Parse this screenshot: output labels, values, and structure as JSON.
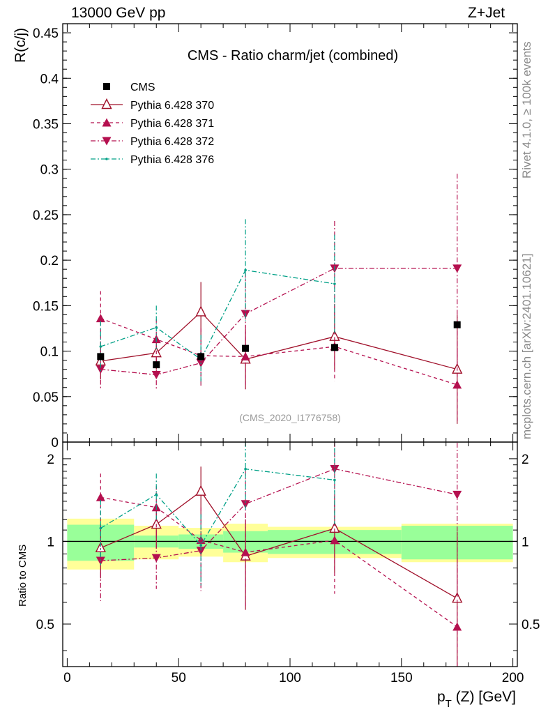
{
  "header": {
    "left": "13000 GeV pp",
    "right": "Z+Jet"
  },
  "side": {
    "rivet": "Rivet 4.1.0, ≥ 100k events",
    "mcplots": "mcplots.cern.ch [arXiv:2401.10621]"
  },
  "chart_data": {
    "type": "scatter",
    "title": "CMS - Ratio charm/jet (combined)",
    "analysis_label": "(CMS_2020_I1776758)",
    "xlabel": "p_T (Z) [GeV]",
    "xlabel_main": "p",
    "xlabel_sub": "T",
    "xlabel_rest": " (Z) [GeV]",
    "ylabel": "R(c/j)",
    "ratio_ylabel": "Ratio to CMS",
    "xlim": [
      -2,
      202
    ],
    "ylim": [
      0,
      0.46
    ],
    "ratio_ylim": [
      0.35,
      2.3
    ],
    "xticks": [
      0,
      50,
      100,
      150,
      200
    ],
    "yticks": [
      0,
      0.05,
      0.1,
      0.15,
      0.2,
      0.25,
      0.3,
      0.35,
      0.4,
      0.45
    ],
    "ytick_labels": [
      "0",
      "0.05",
      "0.1",
      "0.15",
      "0.2",
      "0.25",
      "0.3",
      "0.35",
      "0.4",
      "0.45"
    ],
    "ratio_yticks": [
      0.5,
      1,
      2
    ],
    "ratio_ytick_labels": [
      "0.5",
      "1",
      "2"
    ],
    "bins": [
      [
        0,
        30
      ],
      [
        30,
        50
      ],
      [
        50,
        70
      ],
      [
        70,
        90
      ],
      [
        90,
        150
      ],
      [
        150,
        200
      ]
    ],
    "x": [
      15,
      40,
      60,
      80,
      120,
      175
    ],
    "data": {
      "name": "CMS",
      "values": [
        0.094,
        0.085,
        0.094,
        0.103,
        0.104,
        0.129
      ],
      "stat_rel": [
        0.15,
        0.05,
        0.06,
        0.09,
        0.1,
        0.14
      ],
      "total_rel": [
        0.21,
        0.14,
        0.12,
        0.16,
        0.13,
        0.16
      ]
    },
    "series": [
      {
        "name": "Pythia 6.428 370",
        "color": "#a0102a",
        "dash": "",
        "marker": "triangle-up-open",
        "values": [
          0.089,
          0.098,
          0.143,
          0.091,
          0.116,
          0.08
        ],
        "errors": [
          0.02,
          0.018,
          0.033,
          0.033,
          0.036,
          0.06
        ]
      },
      {
        "name": "Pythia 6.428 371",
        "color": "#b5104f",
        "dash": "5,4",
        "marker": "triangle-up",
        "values": [
          0.136,
          0.113,
          0.095,
          0.094,
          0.105,
          0.063
        ],
        "errors": [
          0.03,
          0.022,
          0.03,
          0.035,
          0.038,
          0.04
        ]
      },
      {
        "name": "Pythia 6.428 372",
        "color": "#b5104f",
        "dash": "7,3,2,3",
        "marker": "triangle-down",
        "values": [
          0.08,
          0.074,
          0.087,
          0.141,
          0.191,
          0.191
        ],
        "errors": [
          0.023,
          0.017,
          0.025,
          0.045,
          0.052,
          0.104
        ]
      },
      {
        "name": "Pythia 6.428 376",
        "color": "#00a087",
        "dash": "7,3,2,3",
        "marker": "dot",
        "values": [
          0.105,
          0.126,
          0.091,
          0.189,
          0.174,
          null
        ],
        "errors": [
          0.028,
          0.024,
          0.027,
          0.056,
          0.054,
          null
        ]
      }
    ]
  }
}
